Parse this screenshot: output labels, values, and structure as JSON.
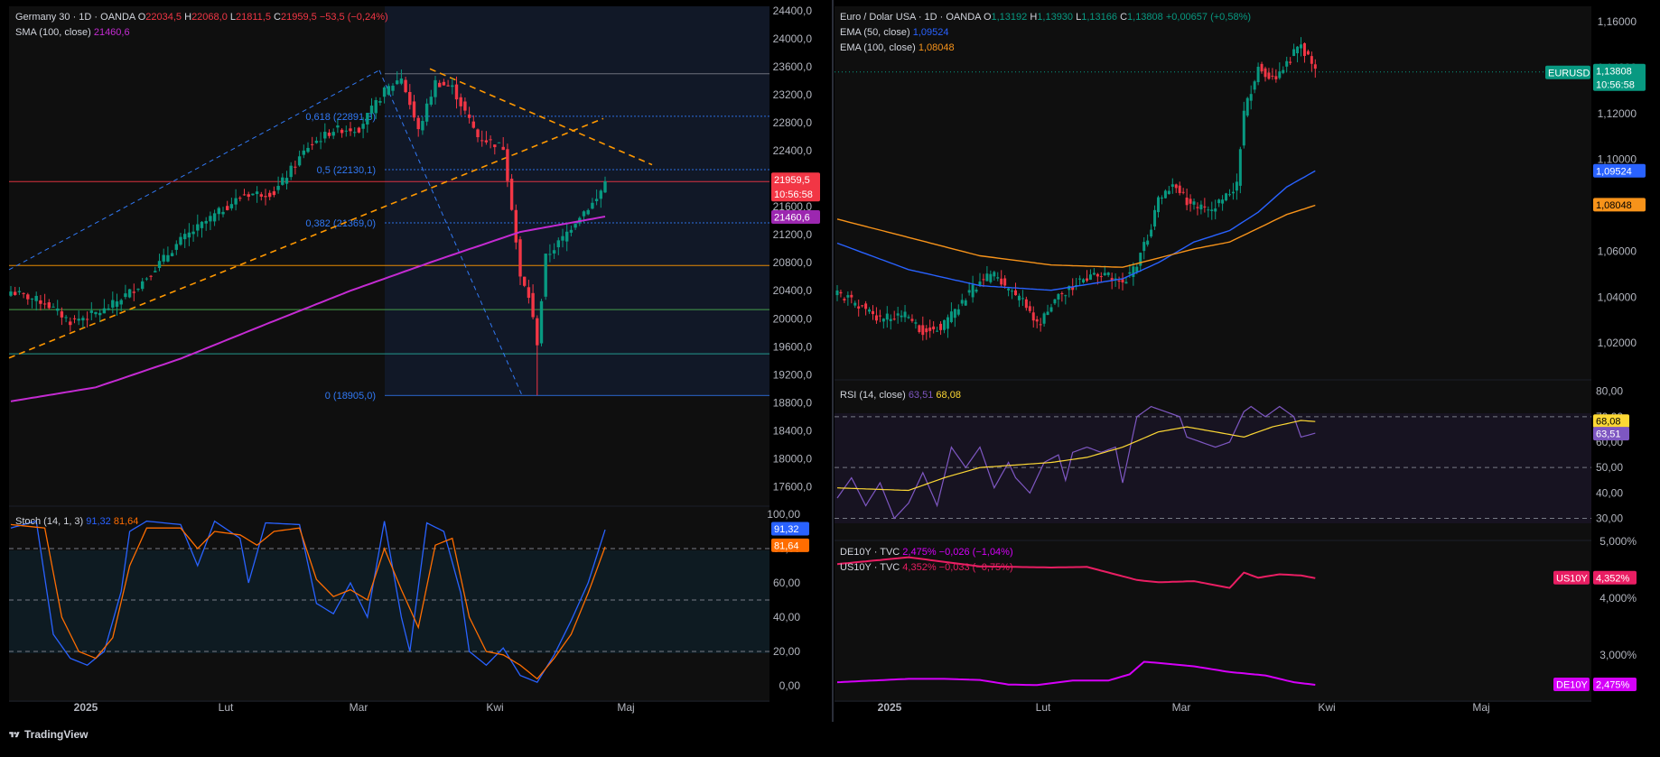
{
  "colors": {
    "up": "#089981",
    "down": "#f23645",
    "sma": "#c42bd2",
    "ema50": "#2962ff",
    "ema100": "#f7931a",
    "rsi": "#7e57c2",
    "rsi_ma": "#fdd835",
    "stoch_k": "#2962ff",
    "stoch_d": "#ff6d00",
    "us10y": "#e91e63",
    "de10y": "#d500f9",
    "fib_blue": "#3179f5",
    "fib_red": "#f23645",
    "fib_orange": "#ff9800",
    "fib_green": "#4caf50",
    "fib_teal": "#26a69a",
    "fib_grey": "#787b86"
  },
  "footer": {
    "brand": "TradingView",
    "icon": "tradingview-logo-icon"
  },
  "ger_header": {
    "symbol": "Germany 30 · 1D · OANDA",
    "o_label": "O",
    "o_val": "22034,5",
    "h_label": "H",
    "h_val": "22068,0",
    "l_label": "L",
    "l_val": "21811,5",
    "c_label": "C",
    "c_val": "21959,5",
    "change": "−53,5 (−0,24%)",
    "sma_label": "SMA (100, close)",
    "sma_val": "21460,6"
  },
  "ger_price_axis": [
    "24400,0",
    "24000,0",
    "23600,0",
    "23200,0",
    "22800,0",
    "22400,0",
    "22000,0",
    "21600,0",
    "21200,0",
    "20800,0",
    "20400,0",
    "20000,0",
    "19600,0",
    "19200,0",
    "18800,0",
    "18400,0",
    "18000,0",
    "17600,0"
  ],
  "ger_tags": {
    "price": "21959,5",
    "countdown": "10:56:58",
    "sma": "21460,6"
  },
  "fib_labels": [
    {
      "text": "0 (18905,0)",
      "value": 18905
    },
    {
      "text": "0,382 (21369,0)",
      "value": 21369
    },
    {
      "text": "0,5 (22130,1)",
      "value": 22130
    },
    {
      "text": "0,618 (22891,3)",
      "value": 22891
    }
  ],
  "stoch_header": {
    "label": "Stoch (14, 1, 3)",
    "k_val": "91,32",
    "d_val": "81,64"
  },
  "stoch_axis": [
    "100,00",
    "80,00",
    "60,00",
    "40,00",
    "20,00",
    "0,00"
  ],
  "stoch_tags": {
    "k": "91,32",
    "d": "81,64"
  },
  "time_axis": [
    "2025",
    "Lut",
    "Mar",
    "Kwi",
    "Maj"
  ],
  "eur_header": {
    "symbol": "Euro / Dolar USA · 1D · OANDA",
    "o_label": "O",
    "o_val": "1,13192",
    "h_label": "H",
    "h_val": "1,13930",
    "l_label": "L",
    "l_val": "1,13166",
    "c_label": "C",
    "c_val": "1,13808",
    "change": "+0,00657 (+0,58%)",
    "ema50_label": "EMA (50, close)",
    "ema50_val": "1,09524",
    "ema100_label": "EMA (100, close)",
    "ema100_val": "1,08048"
  },
  "eur_price_axis": [
    "1,16000",
    "1,14000",
    "1,12000",
    "1,10000",
    "1,08000",
    "1,06000",
    "1,04000",
    "1,02000"
  ],
  "eur_tags": {
    "symbol": "EURUSD",
    "price": "1,13808",
    "countdown": "10:56:58",
    "ema50": "1,09524",
    "ema100": "1,08048"
  },
  "rsi_header": {
    "label": "RSI (14, close)",
    "rsi_val": "63,51",
    "ma_val": "68,08"
  },
  "rsi_axis": [
    "80,00",
    "70,00",
    "60,00",
    "50,00",
    "40,00",
    "30,00"
  ],
  "rsi_tags": {
    "ma": "68,08",
    "rsi": "63,51"
  },
  "yield_header": {
    "de_label": "DE10Y · TVC",
    "de_val": "2,475%",
    "de_change": "−0,026 (−1,04%)",
    "us_label": "US10Y · TVC",
    "us_val": "4,352%",
    "us_change": "−0,033 (−0,75%)"
  },
  "yield_axis": [
    "5,000%",
    "4,000%",
    "3,000%"
  ],
  "yield_tags": {
    "us_label": "US10Y",
    "us_val": "4,352%",
    "de_label": "DE10Y",
    "de_val": "2,475%"
  },
  "chart_data": [
    {
      "type": "candlestick",
      "title": "Germany 30 · 1D · OANDA",
      "ylim": [
        17400,
        24450
      ],
      "x_labels": [
        "2025",
        "Lut",
        "Mar",
        "Kwi",
        "Maj"
      ],
      "close_start": 20240,
      "close_end": 21959.5,
      "overlays": {
        "SMA (100, close)": 21460.6
      },
      "fibonacci": {
        "0": 18905.0,
        "0.382": 21369.0,
        "0.5": 22130.1,
        "0.618": 22891.3
      },
      "horizontal_levels": [
        23500,
        22891.3,
        22130.1,
        21959.5,
        21369.0,
        20760,
        20130,
        19500,
        18905.0
      ]
    },
    {
      "type": "line",
      "title": "Stoch (14, 1, 3)",
      "ylim": [
        0,
        100
      ],
      "series": [
        {
          "name": "%K",
          "last": 91.32
        },
        {
          "name": "%D",
          "last": 81.64
        }
      ],
      "bands": [
        20,
        50,
        80
      ]
    },
    {
      "type": "candlestick",
      "title": "Euro / Dolar USA · 1D · OANDA",
      "ylim": [
        1.0075,
        1.1655
      ],
      "x_labels": [
        "2025",
        "Lut",
        "Mar",
        "Kwi",
        "Maj"
      ],
      "close_start": 1.0425,
      "close_end": 1.13808,
      "overlays": {
        "EMA (50, close)": 1.09524,
        "EMA (100, close)": 1.08048
      }
    },
    {
      "type": "line",
      "title": "RSI (14, close)",
      "ylim": [
        27,
        82
      ],
      "series": [
        {
          "name": "RSI",
          "last": 63.51
        },
        {
          "name": "RSI MA",
          "last": 68.08
        }
      ],
      "bands": [
        30,
        50,
        70
      ]
    },
    {
      "type": "line",
      "title": "US10Y / DE10Y",
      "ylim": [
        2.3,
        5.0
      ],
      "series": [
        {
          "name": "US10Y",
          "last": 4.352
        },
        {
          "name": "DE10Y",
          "last": 2.475
        }
      ]
    }
  ]
}
